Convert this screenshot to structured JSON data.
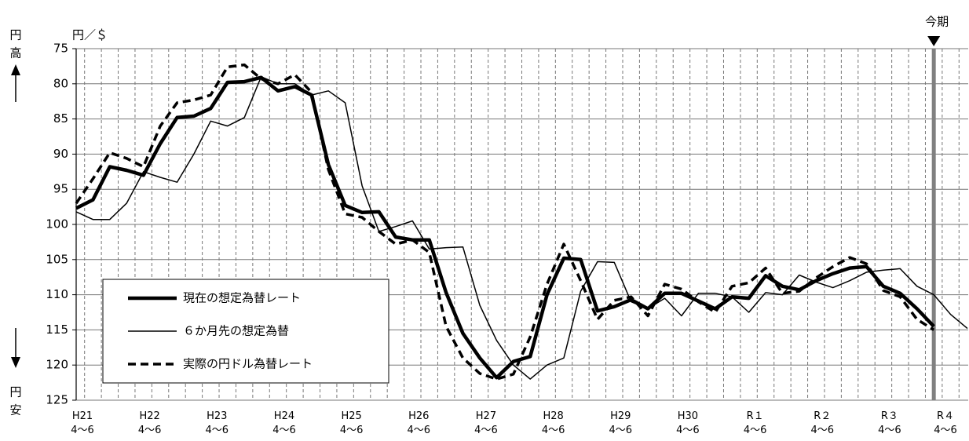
{
  "chart_data": {
    "type": "line",
    "y_axis_label": "円／＄",
    "categories": [
      "H21\n4～6",
      null,
      null,
      null,
      "H22\n4～6",
      null,
      null,
      null,
      "H23\n4～6",
      null,
      null,
      null,
      "H24\n4～6",
      null,
      null,
      null,
      "H25\n4～6",
      null,
      null,
      null,
      "H26\n4～6",
      null,
      null,
      null,
      "H27\n4～6",
      null,
      null,
      null,
      "H28\n4～6",
      null,
      null,
      null,
      "H29\n4～6",
      null,
      null,
      null,
      "H30\n4～6",
      null,
      null,
      null,
      "R１\n4～6",
      null,
      null,
      null,
      "R２\n4～6",
      null,
      null,
      null,
      "R３\n4～6",
      null,
      null,
      null,
      "R４\n4～6",
      null
    ],
    "ylim": [
      75,
      125
    ],
    "y_reversed": true,
    "yticks": [
      75,
      80,
      85,
      90,
      95,
      100,
      105,
      110,
      115,
      120,
      125
    ],
    "grid": true,
    "series": [
      {
        "name": "現在の想定為替レート",
        "color": "#000000",
        "style": "bold",
        "values": [
          97.7,
          96.5,
          91.8,
          92.3,
          93.0,
          88.5,
          84.8,
          84.6,
          83.5,
          79.8,
          79.7,
          79.1,
          81.0,
          80.4,
          81.6,
          91.5,
          97.3,
          98.3,
          98.2,
          101.8,
          102.2,
          102.2,
          109.7,
          115.5,
          119.0,
          121.8,
          119.5,
          118.8,
          110.0,
          104.8,
          105.0,
          112.3,
          111.7,
          110.7,
          112.0,
          109.8,
          109.8,
          110.9,
          112.0,
          110.3,
          110.5,
          107.3,
          108.8,
          109.3,
          108.0,
          107.0,
          106.2,
          106.0,
          108.8,
          109.8,
          112.0,
          114.5,
          null,
          null
        ]
      },
      {
        "name": "６か月先の想定為替",
        "color": "#000000",
        "style": "thin",
        "values": [
          98.2,
          99.3,
          99.3,
          97.0,
          92.5,
          93.3,
          94.0,
          90.0,
          85.3,
          86.0,
          84.8,
          79.0,
          80.0,
          80.0,
          81.6,
          81.0,
          82.7,
          94.5,
          101.0,
          100.3,
          99.5,
          103.5,
          103.3,
          103.2,
          111.5,
          116.5,
          120.0,
          122.0,
          120.0,
          119.0,
          109.5,
          105.3,
          105.4,
          111.0,
          112.0,
          110.5,
          113.0,
          109.8,
          109.8,
          110.3,
          112.5,
          109.7,
          110.0,
          107.2,
          108.2,
          109.0,
          108.0,
          106.8,
          106.5,
          106.3,
          108.8,
          110.0,
          112.8,
          114.8
        ]
      },
      {
        "name": "実際の円ドル為替レート",
        "color": "#000000",
        "style": "dashed",
        "values": [
          97.0,
          93.5,
          89.8,
          90.6,
          91.8,
          86.0,
          82.7,
          82.3,
          81.6,
          77.6,
          77.3,
          79.3,
          80.0,
          78.7,
          81.2,
          92.2,
          98.5,
          99.0,
          101.0,
          102.8,
          102.2,
          104.0,
          114.5,
          119.0,
          121.2,
          122.0,
          121.3,
          116.0,
          108.5,
          102.8,
          108.0,
          113.5,
          110.8,
          110.3,
          113.0,
          108.5,
          109.2,
          111.0,
          112.5,
          108.8,
          108.3,
          106.2,
          109.8,
          109.5,
          107.6,
          106.0,
          104.7,
          105.6,
          109.4,
          110.3,
          113.5,
          115.0,
          null,
          null
        ]
      }
    ],
    "current_period": {
      "label": "今期",
      "category_index": 51,
      "color": "#808080"
    },
    "side_labels": {
      "top": [
        "円",
        "高"
      ],
      "bottom": [
        "円",
        "安"
      ]
    }
  }
}
